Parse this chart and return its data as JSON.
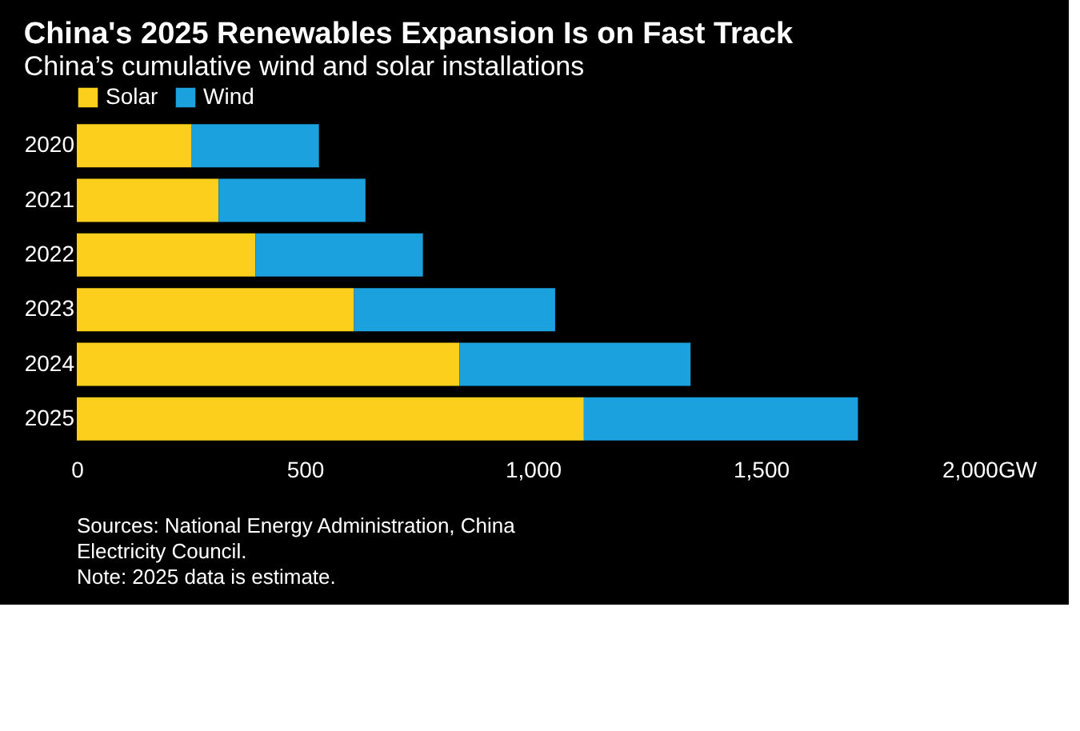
{
  "chart_data": {
    "type": "bar",
    "orientation": "horizontal",
    "stacked": true,
    "title": "China's 2025 Renewables Expansion Is on Fast Track",
    "subtitle": "China’s cumulative wind and solar installations",
    "categories": [
      "2020",
      "2021",
      "2022",
      "2023",
      "2024",
      "2025"
    ],
    "series": [
      {
        "name": "Solar",
        "color": "#fccf1c",
        "values": [
          252,
          311,
          392,
          608,
          839,
          1112
        ]
      },
      {
        "name": "Wind",
        "color": "#1ba1de",
        "values": [
          279,
          322,
          367,
          441,
          507,
          601
        ]
      }
    ],
    "xlim": [
      0,
      2000
    ],
    "xticks": [
      0,
      500,
      {
        "value": 1000,
        "label": "1,000"
      },
      {
        "value": 1500,
        "label": "1,500"
      },
      {
        "value": 2000,
        "label": "2,000GW"
      }
    ],
    "grid": false,
    "legend": "top left",
    "annotations": [
      "Sources: National Energy Administration, China",
      "Electricity Council.",
      "Note: 2025 data is estimate."
    ]
  }
}
